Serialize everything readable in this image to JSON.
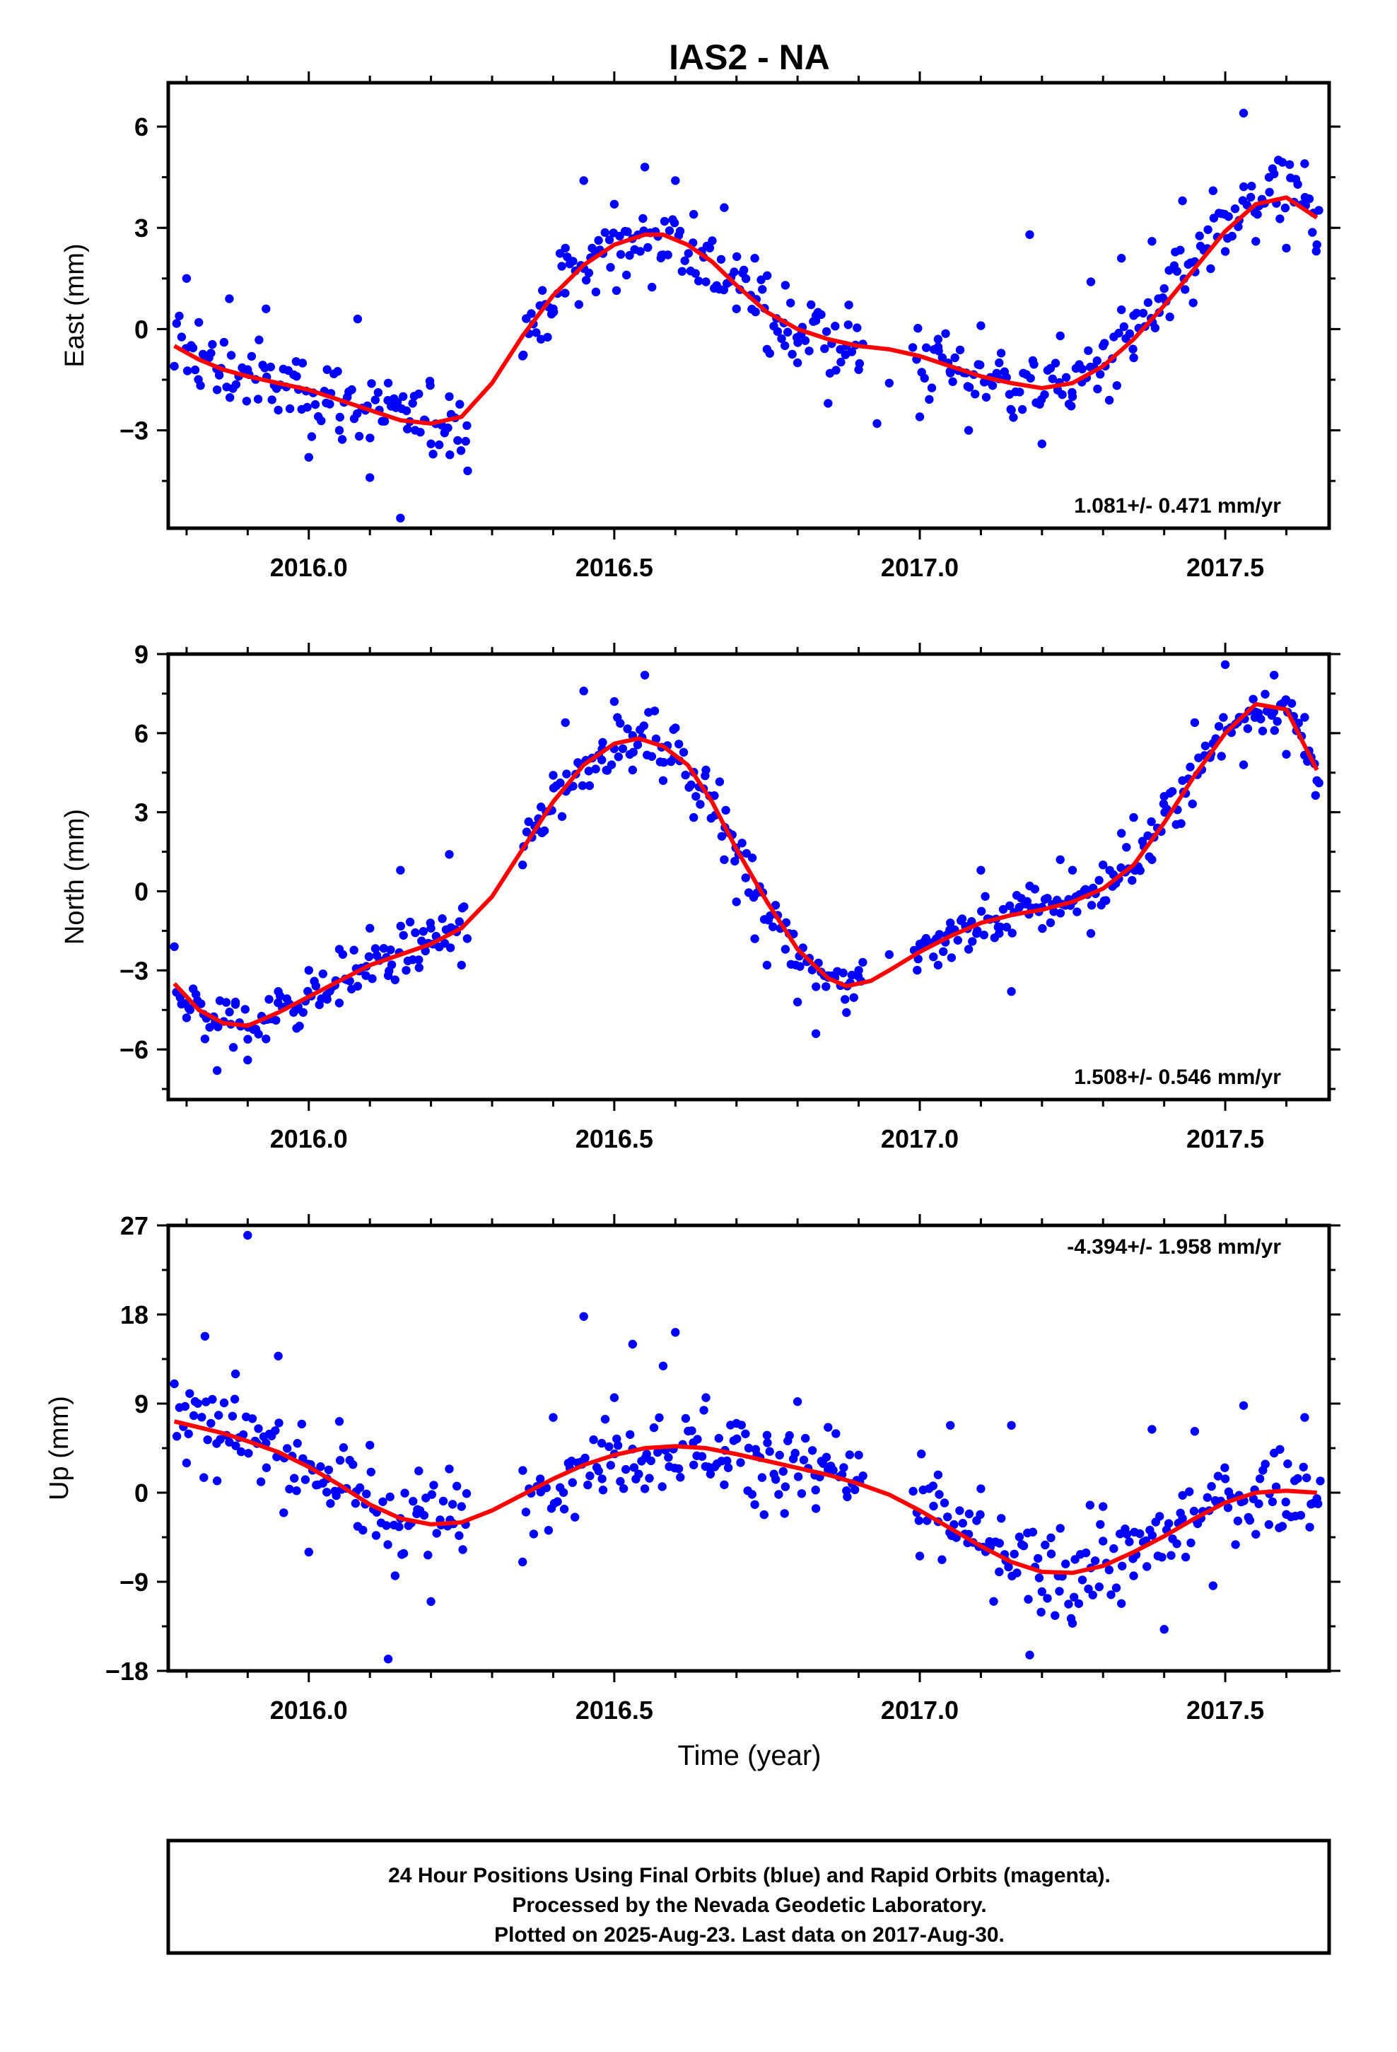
{
  "title": "IAS2 - NA",
  "xlabel": "Time (year)",
  "x_tick_labels": [
    "2016.0",
    "2016.5",
    "2017.0",
    "2017.5"
  ],
  "footer": {
    "line1": "24 Hour Positions Using Final Orbits (blue) and Rapid Orbits (magenta).",
    "line2": "Processed by the Nevada Geodetic Laboratory.",
    "line3": "Plotted on 2025-Aug-23. Last data on 2017-Aug-30."
  },
  "colors": {
    "points": "#0000ff",
    "fit": "#ff0000",
    "frame": "#000000"
  },
  "chart_data": [
    {
      "type": "scatter",
      "ylabel": "East (mm)",
      "rate_label": "1.081+/- 0.471 mm/yr",
      "xlim": [
        2015.77,
        2017.67
      ],
      "ylim": [
        -5.9,
        7.3
      ],
      "xticks": [
        2016.0,
        2016.5,
        2017.0,
        2017.5
      ],
      "yticks": [
        -3,
        0,
        3,
        6
      ],
      "ytick_labels": [
        "−3",
        "0",
        "3",
        "6"
      ],
      "series": [
        {
          "name": "Final Orbits",
          "kind": "points",
          "approx_scatter_mm": 0.95,
          "x": [
            2015.78,
            2015.8,
            2015.82,
            2015.85,
            2015.87,
            2015.9,
            2015.93,
            2015.95,
            2015.98,
            2016.0,
            2016.03,
            2016.05,
            2016.08,
            2016.1,
            2016.13,
            2016.15,
            2016.17,
            2016.2,
            2016.23,
            2016.26,
            2016.35,
            2016.38,
            2016.4,
            2016.42,
            2016.45,
            2016.47,
            2016.5,
            2016.52,
            2016.55,
            2016.58,
            2016.6,
            2016.63,
            2016.65,
            2016.68,
            2016.7,
            2016.73,
            2016.75,
            2016.78,
            2016.8,
            2016.83,
            2016.85,
            2016.88,
            2016.9,
            2016.93,
            2016.95,
            2017.0,
            2017.03,
            2017.05,
            2017.08,
            2017.1,
            2017.13,
            2017.15,
            2017.18,
            2017.2,
            2017.23,
            2017.25,
            2017.28,
            2017.3,
            2017.33,
            2017.35,
            2017.38,
            2017.4,
            2017.43,
            2017.45,
            2017.48,
            2017.5,
            2017.53,
            2017.55,
            2017.58,
            2017.6,
            2017.63,
            2017.65
          ],
          "y": [
            -1.1,
            1.5,
            0.2,
            -1.8,
            0.9,
            -1.2,
            0.6,
            -2.4,
            -1.4,
            -3.8,
            -1.2,
            -3.0,
            0.3,
            -4.4,
            -1.6,
            -5.6,
            -2.2,
            -3.4,
            -2.0,
            -4.2,
            -0.8,
            -0.3,
            0.6,
            2.4,
            4.4,
            1.1,
            3.7,
            1.6,
            4.8,
            2.2,
            4.4,
            3.4,
            1.4,
            3.6,
            0.6,
            2.1,
            -0.6,
            1.3,
            -1.0,
            0.4,
            -2.2,
            -0.5,
            -1.2,
            -2.8,
            -1.6,
            -2.6,
            -0.3,
            -1.3,
            -3.0,
            0.1,
            -1.0,
            -2.4,
            2.8,
            -3.4,
            -0.2,
            -2.0,
            1.4,
            -0.5,
            2.1,
            0.4,
            2.6,
            1.2,
            3.8,
            2.0,
            4.1,
            2.3,
            6.4,
            2.6,
            4.6,
            2.4,
            4.9,
            2.5
          ]
        },
        {
          "name": "Model fit",
          "kind": "line",
          "x": [
            2015.78,
            2015.82,
            2015.86,
            2015.9,
            2015.95,
            2016.0,
            2016.05,
            2016.1,
            2016.15,
            2016.2,
            2016.25,
            2016.3,
            2016.35,
            2016.4,
            2016.45,
            2016.5,
            2016.55,
            2016.58,
            2016.62,
            2016.66,
            2016.7,
            2016.75,
            2016.8,
            2016.85,
            2016.9,
            2016.95,
            2017.0,
            2017.05,
            2017.1,
            2017.15,
            2017.2,
            2017.25,
            2017.3,
            2017.35,
            2017.4,
            2017.45,
            2017.5,
            2017.55,
            2017.6,
            2017.65
          ],
          "y": [
            -0.5,
            -0.9,
            -1.2,
            -1.4,
            -1.6,
            -1.8,
            -2.1,
            -2.4,
            -2.7,
            -2.8,
            -2.6,
            -1.6,
            -0.2,
            1.0,
            1.9,
            2.5,
            2.8,
            2.8,
            2.5,
            2.0,
            1.3,
            0.5,
            0.0,
            -0.3,
            -0.5,
            -0.6,
            -0.8,
            -1.1,
            -1.4,
            -1.6,
            -1.75,
            -1.6,
            -1.1,
            -0.3,
            0.7,
            1.8,
            2.9,
            3.7,
            3.9,
            3.3
          ]
        }
      ]
    },
    {
      "type": "scatter",
      "ylabel": "North (mm)",
      "rate_label": "1.508+/- 0.546 mm/yr",
      "xlim": [
        2015.77,
        2017.67
      ],
      "ylim": [
        -7.9,
        9.0
      ],
      "xticks": [
        2016.0,
        2016.5,
        2017.0,
        2017.5
      ],
      "yticks": [
        -6,
        -3,
        0,
        3,
        6,
        9
      ],
      "ytick_labels": [
        "−6",
        "−3",
        "0",
        "3",
        "6",
        "9"
      ],
      "series": [
        {
          "name": "Final Orbits",
          "kind": "points",
          "approx_scatter_mm": 0.8,
          "x": [
            2015.78,
            2015.8,
            2015.83,
            2015.85,
            2015.88,
            2015.9,
            2015.93,
            2015.95,
            2015.98,
            2016.0,
            2016.03,
            2016.05,
            2016.08,
            2016.1,
            2016.13,
            2016.15,
            2016.18,
            2016.2,
            2016.23,
            2016.25,
            2016.35,
            2016.38,
            2016.4,
            2016.42,
            2016.45,
            2016.48,
            2016.5,
            2016.53,
            2016.55,
            2016.58,
            2016.6,
            2016.63,
            2016.65,
            2016.68,
            2016.7,
            2016.73,
            2016.75,
            2016.78,
            2016.8,
            2016.83,
            2016.85,
            2016.88,
            2016.9,
            2016.95,
            2017.0,
            2017.03,
            2017.05,
            2017.08,
            2017.1,
            2017.13,
            2017.15,
            2017.18,
            2017.2,
            2017.23,
            2017.25,
            2017.28,
            2017.3,
            2017.33,
            2017.35,
            2017.38,
            2017.4,
            2017.43,
            2017.45,
            2017.48,
            2017.5,
            2017.53,
            2017.55,
            2017.58,
            2017.6,
            2017.63,
            2017.65
          ],
          "y": [
            -2.1,
            -4.8,
            -5.6,
            -6.8,
            -4.2,
            -6.4,
            -5.6,
            -3.8,
            -5.2,
            -3.0,
            -4.1,
            -2.2,
            -3.6,
            -1.4,
            -3.2,
            0.8,
            -2.6,
            -1.4,
            1.4,
            -2.8,
            1.0,
            3.2,
            4.4,
            6.4,
            7.6,
            5.4,
            7.2,
            4.6,
            8.2,
            4.2,
            6.2,
            2.8,
            4.6,
            1.2,
            -0.4,
            -1.8,
            -2.8,
            -2.2,
            -4.2,
            -5.4,
            -3.2,
            -4.6,
            -3.0,
            -2.4,
            -2.0,
            -2.8,
            -1.2,
            -2.2,
            0.8,
            -1.6,
            -3.8,
            0.2,
            -0.6,
            1.2,
            0.8,
            -1.6,
            1.0,
            2.2,
            2.8,
            1.2,
            3.6,
            4.2,
            6.4,
            5.6,
            8.6,
            4.8,
            6.8,
            8.2,
            5.2,
            6.6,
            4.2
          ]
        },
        {
          "name": "Model fit",
          "kind": "line",
          "x": [
            2015.78,
            2015.82,
            2015.86,
            2015.9,
            2015.95,
            2016.0,
            2016.05,
            2016.1,
            2016.15,
            2016.2,
            2016.25,
            2016.3,
            2016.35,
            2016.4,
            2016.45,
            2016.5,
            2016.54,
            2016.58,
            2016.62,
            2016.66,
            2016.7,
            2016.75,
            2016.8,
            2016.85,
            2016.88,
            2016.92,
            2016.95,
            2017.0,
            2017.05,
            2017.1,
            2017.15,
            2017.2,
            2017.25,
            2017.3,
            2017.35,
            2017.4,
            2017.45,
            2017.5,
            2017.55,
            2017.6,
            2017.65
          ],
          "y": [
            -3.5,
            -4.5,
            -5.0,
            -5.1,
            -4.6,
            -4.0,
            -3.4,
            -2.8,
            -2.4,
            -2.0,
            -1.4,
            -0.2,
            1.6,
            3.4,
            4.8,
            5.6,
            5.8,
            5.5,
            4.8,
            3.4,
            1.6,
            -0.4,
            -2.2,
            -3.3,
            -3.6,
            -3.4,
            -3.0,
            -2.3,
            -1.7,
            -1.2,
            -0.9,
            -0.7,
            -0.4,
            0.1,
            1.0,
            2.6,
            4.4,
            6.0,
            7.1,
            6.9,
            4.6
          ]
        }
      ]
    },
    {
      "type": "scatter",
      "ylabel": "Up (mm)",
      "rate_label": "-4.394+/- 1.958 mm/yr",
      "xlim": [
        2015.77,
        2017.67
      ],
      "ylim": [
        -18,
        27
      ],
      "xticks": [
        2016.0,
        2016.5,
        2017.0,
        2017.5
      ],
      "yticks": [
        -18,
        -9,
        0,
        9,
        18,
        27
      ],
      "ytick_labels": [
        "−18",
        "−9",
        "0",
        "9",
        "18",
        "27"
      ],
      "series": [
        {
          "name": "Final Orbits",
          "kind": "points",
          "approx_scatter_mm": 3.6,
          "x": [
            2015.78,
            2015.8,
            2015.83,
            2015.85,
            2015.88,
            2015.9,
            2015.93,
            2015.95,
            2015.98,
            2016.0,
            2016.03,
            2016.05,
            2016.08,
            2016.1,
            2016.13,
            2016.15,
            2016.18,
            2016.2,
            2016.23,
            2016.25,
            2016.35,
            2016.38,
            2016.4,
            2016.43,
            2016.45,
            2016.48,
            2016.5,
            2016.53,
            2016.55,
            2016.58,
            2016.6,
            2016.63,
            2016.65,
            2016.68,
            2016.7,
            2016.73,
            2016.75,
            2016.78,
            2016.8,
            2016.83,
            2016.85,
            2016.88,
            2016.9,
            2017.0,
            2017.03,
            2017.05,
            2017.08,
            2017.1,
            2017.13,
            2017.15,
            2017.18,
            2017.2,
            2017.23,
            2017.25,
            2017.28,
            2017.3,
            2017.33,
            2017.35,
            2017.38,
            2017.4,
            2017.43,
            2017.45,
            2017.48,
            2017.5,
            2017.53,
            2017.55,
            2017.58,
            2017.6,
            2017.63,
            2017.65
          ],
          "y": [
            11.0,
            3.0,
            15.8,
            1.2,
            12.0,
            26.0,
            5.0,
            13.8,
            0.2,
            -6.0,
            1.4,
            7.2,
            -3.4,
            4.8,
            -16.8,
            -2.6,
            2.2,
            -11.0,
            2.4,
            -1.4,
            -7.0,
            0.6,
            7.6,
            3.2,
            17.8,
            1.4,
            9.6,
            15.0,
            0.4,
            12.8,
            16.2,
            2.8,
            9.6,
            0.8,
            7.0,
            -1.2,
            5.8,
            0.6,
            9.2,
            -1.6,
            6.6,
            0.2,
            3.8,
            -6.4,
            1.8,
            6.8,
            -4.2,
            0.4,
            -8.0,
            6.8,
            -16.4,
            -10.0,
            -3.6,
            -13.2,
            -7.6,
            -1.4,
            -11.2,
            -8.4,
            6.4,
            -13.8,
            -2.6,
            6.2,
            -9.4,
            1.4,
            8.8,
            -4.2,
            4.0,
            -2.2,
            7.6,
            -0.6
          ]
        },
        {
          "name": "Model fit",
          "kind": "line",
          "x": [
            2015.78,
            2015.82,
            2015.86,
            2015.9,
            2015.95,
            2016.0,
            2016.05,
            2016.1,
            2016.15,
            2016.2,
            2016.25,
            2016.3,
            2016.35,
            2016.4,
            2016.45,
            2016.5,
            2016.55,
            2016.6,
            2016.65,
            2016.7,
            2016.75,
            2016.8,
            2016.85,
            2016.9,
            2016.95,
            2017.0,
            2017.05,
            2017.1,
            2017.15,
            2017.2,
            2017.25,
            2017.3,
            2017.35,
            2017.4,
            2017.45,
            2017.5,
            2017.55,
            2017.6,
            2017.65
          ],
          "y": [
            7.2,
            6.6,
            6.0,
            5.2,
            4.1,
            2.6,
            0.8,
            -1.2,
            -2.6,
            -3.2,
            -3.0,
            -1.8,
            -0.2,
            1.4,
            2.8,
            3.8,
            4.5,
            4.7,
            4.5,
            3.9,
            3.2,
            2.5,
            1.8,
            0.9,
            -0.2,
            -1.8,
            -3.6,
            -5.4,
            -7.0,
            -8.0,
            -8.1,
            -7.4,
            -6.0,
            -4.4,
            -2.6,
            -1.0,
            0.0,
            0.2,
            0.0
          ]
        }
      ]
    }
  ]
}
